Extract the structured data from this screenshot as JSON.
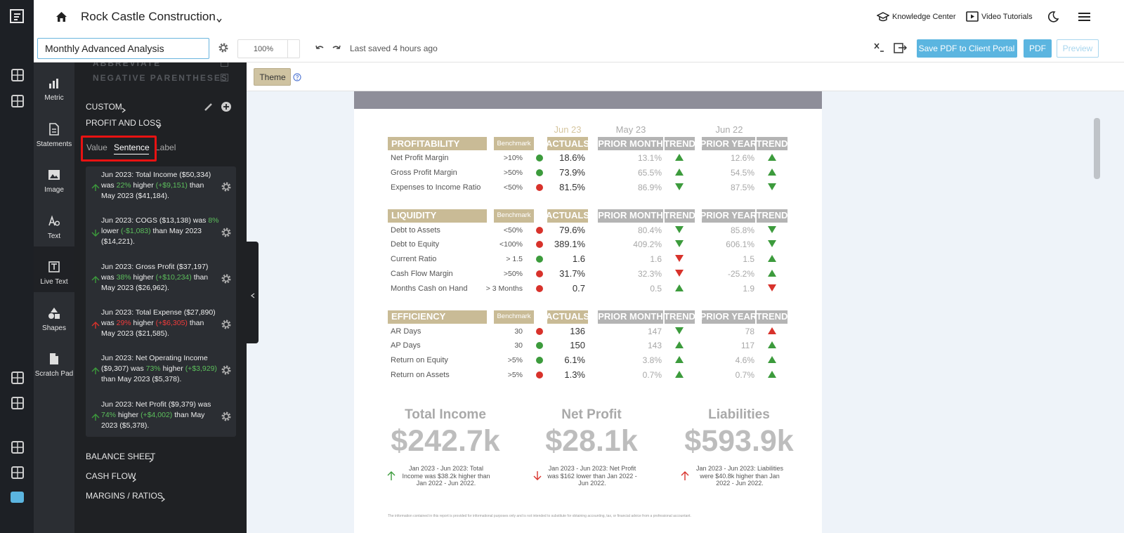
{
  "topbar": {
    "company": "Rock Castle Construction",
    "knowledge_center": "Knowledge Center",
    "video_tutorials": "Video Tutorials"
  },
  "toolbar": {
    "report_name": "Monthly Advanced Analysis",
    "zoom": "100%",
    "last_saved": "Last saved 4 hours ago",
    "save_portal": "Save PDF to Client Portal",
    "pdf": "PDF",
    "preview": "Preview"
  },
  "theme": "Theme",
  "rail": [
    "Metric",
    "Statements",
    "Image",
    "Text",
    "Live Text",
    "Shapes",
    "Scratch Pad"
  ],
  "rail_active": 4,
  "panel": {
    "options": [
      "ABBREVIATE",
      "NEGATIVE PARENTHESES"
    ],
    "custom": "CUSTOM",
    "profit_and_loss": "PROFIT AND LOSS",
    "tabs": [
      "Value",
      "Sentence",
      "Label"
    ],
    "active_tab": 1,
    "sentences": [
      {
        "lead": "Jun 2023: Total Income ($50,334) was",
        "pct": "22%",
        "word": "higher",
        "change": "(+$9,151)",
        "tail": "than May 2023 ($41,184).",
        "arrow": "up",
        "color": "green"
      },
      {
        "lead": "Jun 2023: COGS ($13,138) was",
        "pct": "8%",
        "word": "lower",
        "change": "(-$1,083)",
        "tail": "than May 2023 ($14,221).",
        "arrow": "down",
        "color": "green"
      },
      {
        "lead": "Jun 2023: Gross Profit ($37,197) was",
        "pct": "38%",
        "word": "higher",
        "change": "(+$10,234)",
        "tail": "than May 2023 ($26,962).",
        "arrow": "up",
        "color": "green"
      },
      {
        "lead": "Jun 2023: Total Expense ($27,890) was",
        "pct": "29%",
        "word": "higher",
        "change": "(+$6,305)",
        "tail": "than May 2023 ($21,585).",
        "arrow": "up",
        "color": "red"
      },
      {
        "lead": "Jun 2023: Net Operating Income ($9,307) was",
        "pct": "73%",
        "word": "higher",
        "change": "(+$3,929)",
        "tail": "than May 2023 ($5,378).",
        "arrow": "up",
        "color": "green"
      },
      {
        "lead": "Jun 2023: Net Profit ($9,379) was",
        "pct": "74%",
        "word": "higher",
        "change": "(+$4,002)",
        "tail": "than May 2023 ($5,378).",
        "arrow": "up",
        "color": "green"
      }
    ],
    "sections": [
      "BALANCE SHEET",
      "CASH FLOW",
      "MARGINS / RATIOS"
    ]
  },
  "report": {
    "periods": [
      "Jun 23",
      "May 23",
      "Jun 22"
    ],
    "columns": [
      "Benchmark",
      "ACTUALS",
      "PRIOR MONTH",
      "TREND",
      "PRIOR YEAR",
      "TREND"
    ],
    "sections": [
      {
        "title": "PROFITABILITY",
        "rows": [
          {
            "name": "Net Profit Margin",
            "benchmark": ">10%",
            "status": "green",
            "actual": "18.6%",
            "prior_month": "13.1%",
            "pm_trend": "up",
            "pm_color": "green",
            "prior_year": "12.6%",
            "py_trend": "up",
            "py_color": "green"
          },
          {
            "name": "Gross Profit Margin",
            "benchmark": ">50%",
            "status": "green",
            "actual": "73.9%",
            "prior_month": "65.5%",
            "pm_trend": "up",
            "pm_color": "green",
            "prior_year": "54.5%",
            "py_trend": "up",
            "py_color": "green"
          },
          {
            "name": "Expenses to Income Ratio",
            "benchmark": "<50%",
            "status": "red",
            "actual": "81.5%",
            "prior_month": "86.9%",
            "pm_trend": "down",
            "pm_color": "green",
            "prior_year": "87.5%",
            "py_trend": "down",
            "py_color": "green"
          }
        ]
      },
      {
        "title": "LIQUIDITY",
        "rows": [
          {
            "name": "Debt to Assets",
            "benchmark": "<50%",
            "status": "red",
            "actual": "79.6%",
            "prior_month": "80.4%",
            "pm_trend": "down",
            "pm_color": "green",
            "prior_year": "85.8%",
            "py_trend": "down",
            "py_color": "green"
          },
          {
            "name": "Debt to Equity",
            "benchmark": "<100%",
            "status": "red",
            "actual": "389.1%",
            "prior_month": "409.2%",
            "pm_trend": "down",
            "pm_color": "green",
            "prior_year": "606.1%",
            "py_trend": "down",
            "py_color": "green"
          },
          {
            "name": "Current Ratio",
            "benchmark": "> 1.5",
            "status": "green",
            "actual": "1.6",
            "prior_month": "1.6",
            "pm_trend": "down",
            "pm_color": "red",
            "prior_year": "1.5",
            "py_trend": "up",
            "py_color": "green"
          },
          {
            "name": "Cash Flow Margin",
            "benchmark": ">50%",
            "status": "red",
            "actual": "31.7%",
            "prior_month": "32.3%",
            "pm_trend": "down",
            "pm_color": "red",
            "prior_year": "-25.2%",
            "py_trend": "up",
            "py_color": "green"
          },
          {
            "name": "Months Cash on Hand",
            "benchmark": "> 3 Months",
            "status": "red",
            "actual": "0.7",
            "prior_month": "0.5",
            "pm_trend": "up",
            "pm_color": "green",
            "prior_year": "1.9",
            "py_trend": "down",
            "py_color": "red"
          }
        ]
      },
      {
        "title": "EFFICIENCY",
        "rows": [
          {
            "name": "AR Days",
            "benchmark": "30",
            "status": "red",
            "actual": "136",
            "prior_month": "147",
            "pm_trend": "down",
            "pm_color": "green",
            "prior_year": "78",
            "py_trend": "up",
            "py_color": "red"
          },
          {
            "name": "AP Days",
            "benchmark": "30",
            "status": "green",
            "actual": "150",
            "prior_month": "143",
            "pm_trend": "up",
            "pm_color": "green",
            "prior_year": "117",
            "py_trend": "up",
            "py_color": "green"
          },
          {
            "name": "Return on Equity",
            "benchmark": ">5%",
            "status": "green",
            "actual": "6.1%",
            "prior_month": "3.8%",
            "pm_trend": "up",
            "pm_color": "green",
            "prior_year": "4.6%",
            "py_trend": "up",
            "py_color": "green"
          },
          {
            "name": "Return on Assets",
            "benchmark": ">5%",
            "status": "red",
            "actual": "1.3%",
            "prior_month": "0.7%",
            "pm_trend": "up",
            "pm_color": "green",
            "prior_year": "0.7%",
            "py_trend": "up",
            "py_color": "green"
          }
        ]
      }
    ],
    "kpis": [
      {
        "title": "Total Income",
        "value": "$242.7k",
        "note": "Jan 2023 - Jun 2023: Total Income was $38.2k higher than Jan 2022 - Jun 2022.",
        "arrow": "up",
        "color": "green"
      },
      {
        "title": "Net Profit",
        "value": "$28.1k",
        "note": "Jan 2023 - Jun 2023: Net Profit was $162 lower than Jan 2022 - Jun 2022.",
        "arrow": "down",
        "color": "red"
      },
      {
        "title": "Liabilities",
        "value": "$593.9k",
        "note": "Jan 2023 - Jun 2023: Liabilities were $40.8k higher than Jan 2022 - Jun 2022.",
        "arrow": "up",
        "color": "red"
      }
    ],
    "disclaimer": "The information contained in this report is provided for informational purposes only and is not intended to substitute for obtaining accounting, tax, or financial advice from a professional accountant."
  }
}
